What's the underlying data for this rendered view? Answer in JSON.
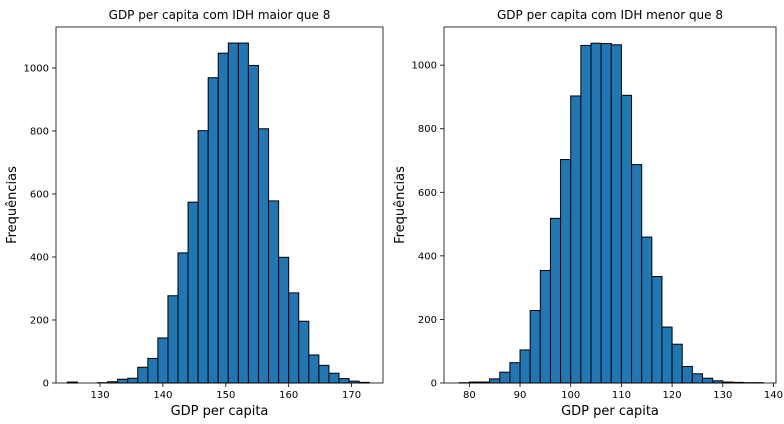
{
  "chart_data": [
    {
      "type": "bar",
      "title": "GDP per capita com IDH maior que 8",
      "xlabel": "GDP per capita",
      "ylabel": "Frequências",
      "xlim": [
        123,
        175
      ],
      "ylim": [
        0,
        1130
      ],
      "xticks": [
        130,
        140,
        150,
        160,
        170
      ],
      "yticks": [
        0,
        200,
        400,
        600,
        800,
        1000
      ],
      "bin_edges": [
        124.8,
        126.4,
        128.0,
        129.6,
        131.2,
        132.8,
        134.4,
        136.0,
        137.6,
        139.2,
        140.8,
        142.4,
        144.0,
        145.6,
        147.2,
        148.8,
        150.4,
        152.0,
        153.6,
        155.2,
        156.8,
        158.4,
        160.0,
        161.6,
        163.2,
        164.8,
        166.4,
        168.0,
        169.6,
        171.2,
        172.8
      ],
      "values": [
        3,
        0,
        0,
        1,
        4,
        12,
        15,
        50,
        78,
        143,
        277,
        413,
        574,
        801,
        969,
        1047,
        1079,
        1079,
        1008,
        807,
        578,
        399,
        286,
        196,
        89,
        56,
        31,
        14,
        6,
        2
      ]
    },
    {
      "type": "bar",
      "title": "GDP per capita com IDH menor que 8",
      "xlabel": "GDP per capita",
      "ylabel": "Frequências",
      "xlim": [
        75,
        140.5
      ],
      "ylim": [
        0,
        1120
      ],
      "xticks": [
        80,
        90,
        100,
        110,
        120,
        130,
        140
      ],
      "yticks": [
        0,
        200,
        400,
        600,
        800,
        1000
      ],
      "bin_edges": [
        78.0,
        80.0,
        82.0,
        84.0,
        86.0,
        88.0,
        90.0,
        92.0,
        94.0,
        96.0,
        98.0,
        100.0,
        102.0,
        104.0,
        106.0,
        108.0,
        110.0,
        112.0,
        114.0,
        116.0,
        118.0,
        120.0,
        122.0,
        124.0,
        126.0,
        128.0,
        130.0,
        132.0,
        134.0,
        136.0,
        138.0
      ],
      "values": [
        1,
        3,
        3,
        13,
        34,
        64,
        104,
        228,
        354,
        518,
        703,
        903,
        1062,
        1069,
        1068,
        1064,
        905,
        687,
        459,
        335,
        176,
        122,
        52,
        29,
        15,
        7,
        3,
        2,
        1,
        1
      ]
    }
  ]
}
